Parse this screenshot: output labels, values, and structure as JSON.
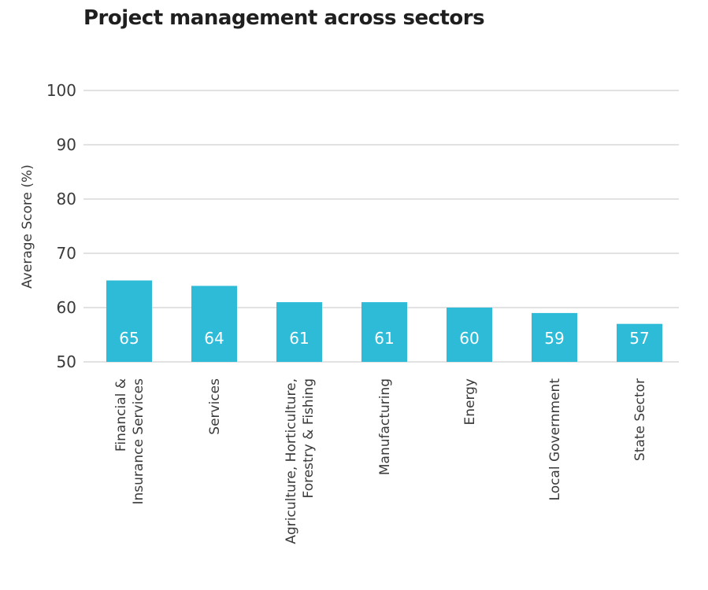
{
  "chart_data": {
    "type": "bar",
    "title": "Project management across sectors",
    "ylabel": "Average Score (%)",
    "xlabel": "",
    "ylim": [
      50,
      100
    ],
    "yticks": [
      50,
      60,
      70,
      80,
      90,
      100
    ],
    "grid": true,
    "bar_color": "#2ebbd8",
    "categories": [
      [
        "Financial &",
        "Insurance Services"
      ],
      [
        "Services"
      ],
      [
        "Agriculture, Horticulture,",
        "Forestry & Fishing"
      ],
      [
        "Manufacturing"
      ],
      [
        "Energy"
      ],
      [
        "Local Government"
      ],
      [
        "State Sector"
      ]
    ],
    "values": [
      65,
      64,
      61,
      61,
      60,
      59,
      57
    ]
  }
}
